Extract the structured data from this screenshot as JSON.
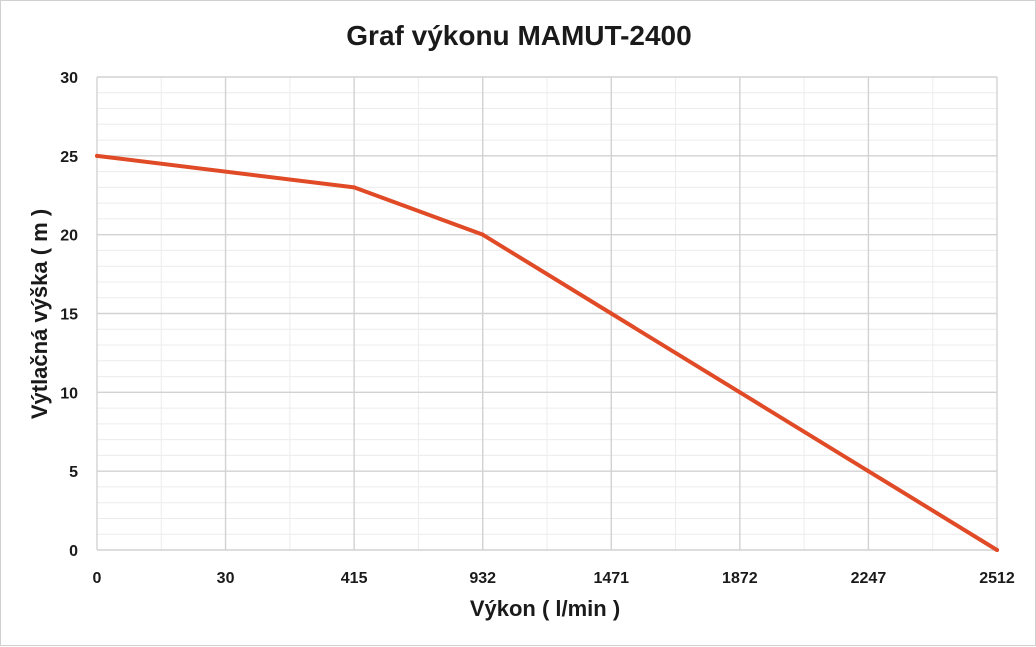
{
  "chart_data": {
    "type": "line",
    "title": "Graf výkonu MAMUT-2400",
    "xlabel": "Výkon ( l/min )",
    "ylabel": "Výtlačná výška ( m )",
    "x_scale": "categorical",
    "categories": [
      "0",
      "30",
      "415",
      "932",
      "1471",
      "1872",
      "2247",
      "2512"
    ],
    "ylim": [
      0,
      30
    ],
    "yticks": [
      "0",
      "5",
      "10",
      "15",
      "20",
      "25",
      "30"
    ],
    "grid": true,
    "legend": "none",
    "series": [
      {
        "color": "#e04a26",
        "points": [
          {
            "x": "0",
            "y": 25
          },
          {
            "x": "415",
            "y": 23
          },
          {
            "x": "932",
            "y": 20
          },
          {
            "x": "1471",
            "y": 15
          },
          {
            "x": "1872",
            "y": 10
          },
          {
            "x": "2247",
            "y": 5
          },
          {
            "x": "2512",
            "y": 0
          }
        ]
      }
    ]
  }
}
